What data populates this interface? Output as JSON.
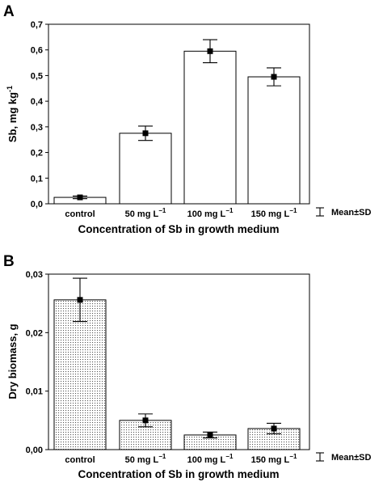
{
  "chart_data": [
    {
      "panel": "A",
      "type": "bar",
      "categories": [
        "control",
        "50 mg L",
        "100 mg L",
        "150 mg L"
      ],
      "category_superscripts": [
        "",
        "−1",
        "−1",
        "−1"
      ],
      "values": [
        0.025,
        0.275,
        0.595,
        0.495
      ],
      "error": [
        0.005,
        0.028,
        0.045,
        0.035
      ],
      "xlabel": "Concentration of Sb in growth medium",
      "ylabel": "Sb, mg kg",
      "ylabel_superscript": "-1",
      "ylim": [
        0,
        0.7
      ],
      "yticks": [
        0,
        0.1,
        0.2,
        0.3,
        0.4,
        0.5,
        0.6,
        0.7
      ],
      "ytick_labels": [
        "0,0",
        "0,1",
        "0,2",
        "0,3",
        "0,4",
        "0,5",
        "0,6",
        "0,7"
      ],
      "bar_fill": "plain",
      "legend": "Mean±SD",
      "legend_position": "outside-right"
    },
    {
      "panel": "B",
      "type": "bar",
      "categories": [
        "control",
        "50 mg L",
        "100 mg L",
        "150 mg L"
      ],
      "category_superscripts": [
        "",
        "−1",
        "−1",
        "−1"
      ],
      "values": [
        0.0256,
        0.005,
        0.0025,
        0.0036
      ],
      "error": [
        0.0037,
        0.0011,
        0.0005,
        0.0009
      ],
      "xlabel": "Concentration of Sb in growth medium",
      "ylabel": "Dry biomass, g",
      "ylim": [
        0,
        0.03
      ],
      "yticks": [
        0,
        0.01,
        0.02,
        0.03
      ],
      "ytick_labels": [
        "0,00",
        "0,01",
        "0,02",
        "0,03"
      ],
      "bar_fill": "dotted",
      "legend": "Mean±SD",
      "legend_position": "outside-right"
    }
  ],
  "colors": {
    "bar_edge": "#000000",
    "bar_fill_plain": "#ffffff",
    "dot": "#555555"
  }
}
